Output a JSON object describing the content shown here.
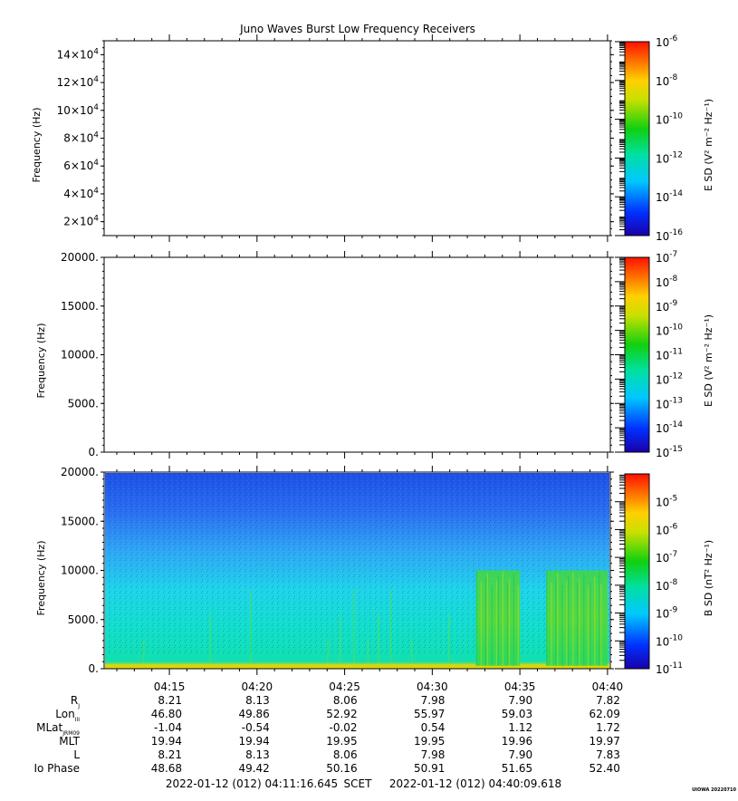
{
  "title": "Juno Waves Burst Low Frequency Receivers",
  "credit": "UIOWA 20220710",
  "chart_data": [
    {
      "type": "heatmap",
      "panel": "top",
      "ylabel": "Frequency (Hz)",
      "ylim": [
        10000,
        150000
      ],
      "yticks": [
        {
          "value": 20000,
          "mantissa": "2×10",
          "exp": "4"
        },
        {
          "value": 40000,
          "mantissa": "4×10",
          "exp": "4"
        },
        {
          "value": 60000,
          "mantissa": "6×10",
          "exp": "4"
        },
        {
          "value": 80000,
          "mantissa": "8×10",
          "exp": "4"
        },
        {
          "value": 100000,
          "mantissa": "10×10",
          "exp": "4"
        },
        {
          "value": 120000,
          "mantissa": "12×10",
          "exp": "4"
        },
        {
          "value": 140000,
          "mantissa": "14×10",
          "exp": "4"
        }
      ],
      "data_present": false,
      "colorbar": {
        "label": "E SD (V² m⁻² Hz⁻¹)",
        "scale": "log",
        "range": [
          -16,
          -6
        ],
        "ticks": [
          {
            "exp": "-6"
          },
          {
            "exp": "-8"
          },
          {
            "exp": "-10"
          },
          {
            "exp": "-12"
          },
          {
            "exp": "-14"
          },
          {
            "exp": "-16"
          }
        ]
      }
    },
    {
      "type": "heatmap",
      "panel": "middle",
      "ylabel": "Frequency (Hz)",
      "ylim": [
        0,
        20000
      ],
      "yticks": [
        {
          "value": 0,
          "label": "0."
        },
        {
          "value": 5000,
          "label": "5000."
        },
        {
          "value": 10000,
          "label": "10000."
        },
        {
          "value": 15000,
          "label": "15000."
        },
        {
          "value": 20000,
          "label": "20000."
        }
      ],
      "data_present": false,
      "colorbar": {
        "label": "E SD (V² m⁻² Hz⁻¹)",
        "scale": "log",
        "range": [
          -15,
          -7
        ],
        "ticks": [
          {
            "exp": "-7"
          },
          {
            "exp": "-8"
          },
          {
            "exp": "-9"
          },
          {
            "exp": "-10"
          },
          {
            "exp": "-11"
          },
          {
            "exp": "-12"
          },
          {
            "exp": "-13"
          },
          {
            "exp": "-14"
          },
          {
            "exp": "-15"
          }
        ]
      }
    },
    {
      "type": "heatmap",
      "panel": "bottom",
      "ylabel": "Frequency (Hz)",
      "ylim": [
        0,
        20000
      ],
      "yticks": [
        {
          "value": 0,
          "label": "0."
        },
        {
          "value": 5000,
          "label": "5000."
        },
        {
          "value": 10000,
          "label": "10000."
        },
        {
          "value": 15000,
          "label": "15000."
        },
        {
          "value": 20000,
          "label": "20000."
        }
      ],
      "data_present": true,
      "background_level": "noise floor ~1e-9 near 0 Hz decreasing to ~1e-10 at 20000 Hz",
      "bursts": [
        {
          "t_start": "04:32:30",
          "t_end": "04:35:00",
          "f_max": 10000,
          "level": 1e-08
        },
        {
          "t_start": "04:36:30",
          "t_end": "04:40:00",
          "f_max": 10000,
          "level": 1e-08
        }
      ],
      "colorbar": {
        "label": "B SD (nT² Hz⁻¹)",
        "scale": "log",
        "range": [
          -11,
          -4
        ],
        "ticks": [
          {
            "exp": "-5"
          },
          {
            "exp": "-6"
          },
          {
            "exp": "-7"
          },
          {
            "exp": "-8"
          },
          {
            "exp": "-9"
          },
          {
            "exp": "-10"
          },
          {
            "exp": "-11"
          }
        ]
      }
    }
  ],
  "time_axis": {
    "start": "04:11:16.645",
    "end": "04:40:09.618",
    "tick_labels": [
      "04:15",
      "04:20",
      "04:25",
      "04:30",
      "04:35",
      "04:40"
    ],
    "tick_minutes": [
      15,
      20,
      25,
      30,
      35,
      40
    ]
  },
  "ephemeris": {
    "rows": [
      {
        "label": "R",
        "sub": "J",
        "values": [
          "8.21",
          "8.13",
          "8.06",
          "7.98",
          "7.90",
          "7.82"
        ]
      },
      {
        "label": "Lon",
        "sub": "III",
        "values": [
          "46.80",
          "49.86",
          "52.92",
          "55.97",
          "59.03",
          "62.09"
        ]
      },
      {
        "label": "MLat",
        "sub": "JRM09",
        "values": [
          "-1.04",
          "-0.54",
          "-0.02",
          "0.54",
          "1.12",
          "1.72"
        ]
      },
      {
        "label": "MLT",
        "sub": "",
        "values": [
          "19.94",
          "19.94",
          "19.95",
          "19.95",
          "19.96",
          "19.97"
        ]
      },
      {
        "label": "L",
        "sub": "",
        "values": [
          "8.21",
          "8.13",
          "8.06",
          "7.98",
          "7.90",
          "7.83"
        ]
      },
      {
        "label": "Io Phase",
        "sub": "",
        "values": [
          "48.68",
          "49.42",
          "50.16",
          "50.91",
          "51.65",
          "52.40"
        ]
      }
    ]
  },
  "footer": {
    "start": "2022-01-12 (012) 04:11:16.645",
    "mid": "SCET",
    "end": "2022-01-12 (012) 04:40:09.618"
  }
}
